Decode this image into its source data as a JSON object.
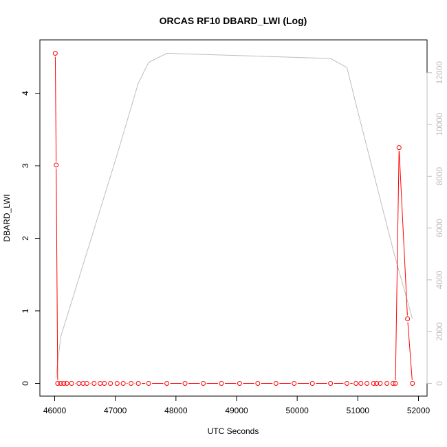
{
  "chart_data": {
    "type": "line",
    "title": "ORCAS RF10 DBARD_LWI (Log)",
    "xlabel": "UTC Seconds",
    "ylabel": "DBARD_LWI",
    "xlim": [
      46000,
      52000
    ],
    "ylim": [
      0,
      4.55
    ],
    "y2lim": [
      0,
      12750
    ],
    "x_ticks": [
      46000,
      47000,
      48000,
      49000,
      50000,
      51000,
      52000
    ],
    "y_ticks": [
      0,
      1,
      2,
      3,
      4
    ],
    "y2_ticks": [
      0,
      2000,
      4000,
      6000,
      8000,
      10000,
      12000
    ],
    "grid": false,
    "series": [
      {
        "color": "#ff0000",
        "axis": "left",
        "marker": "open-circle",
        "x": [
          46010,
          46025,
          46050,
          46100,
          46150,
          46200,
          46280,
          46400,
          46470,
          46530,
          46650,
          46750,
          46820,
          46920,
          47030,
          47130,
          47260,
          47380,
          47550,
          47850,
          48150,
          48450,
          48750,
          49050,
          49350,
          49650,
          49950,
          50250,
          50550,
          50820,
          50970,
          51050,
          51150,
          51260,
          51310,
          51370,
          51480,
          51580,
          51620,
          51680,
          51820,
          51900
        ],
        "y": [
          4.55,
          3.01,
          0,
          0,
          0,
          0,
          0,
          0,
          0,
          0,
          0,
          0,
          0,
          0,
          0,
          0,
          0,
          0,
          0,
          0,
          0,
          0,
          0,
          0,
          0,
          0,
          0,
          0,
          0,
          0,
          0,
          0,
          0,
          0,
          0,
          0,
          0,
          0,
          0,
          3.25,
          0.89,
          0
        ]
      },
      {
        "color": "#bdbdbd",
        "axis": "right",
        "marker": "none",
        "x": [
          46020,
          46100,
          47000,
          47380,
          47550,
          47850,
          50550,
          50820,
          51000,
          51600,
          51900
        ],
        "y": [
          200,
          1800,
          8600,
          11600,
          12400,
          12750,
          12550,
          12200,
          10500,
          5000,
          2500
        ]
      }
    ]
  }
}
